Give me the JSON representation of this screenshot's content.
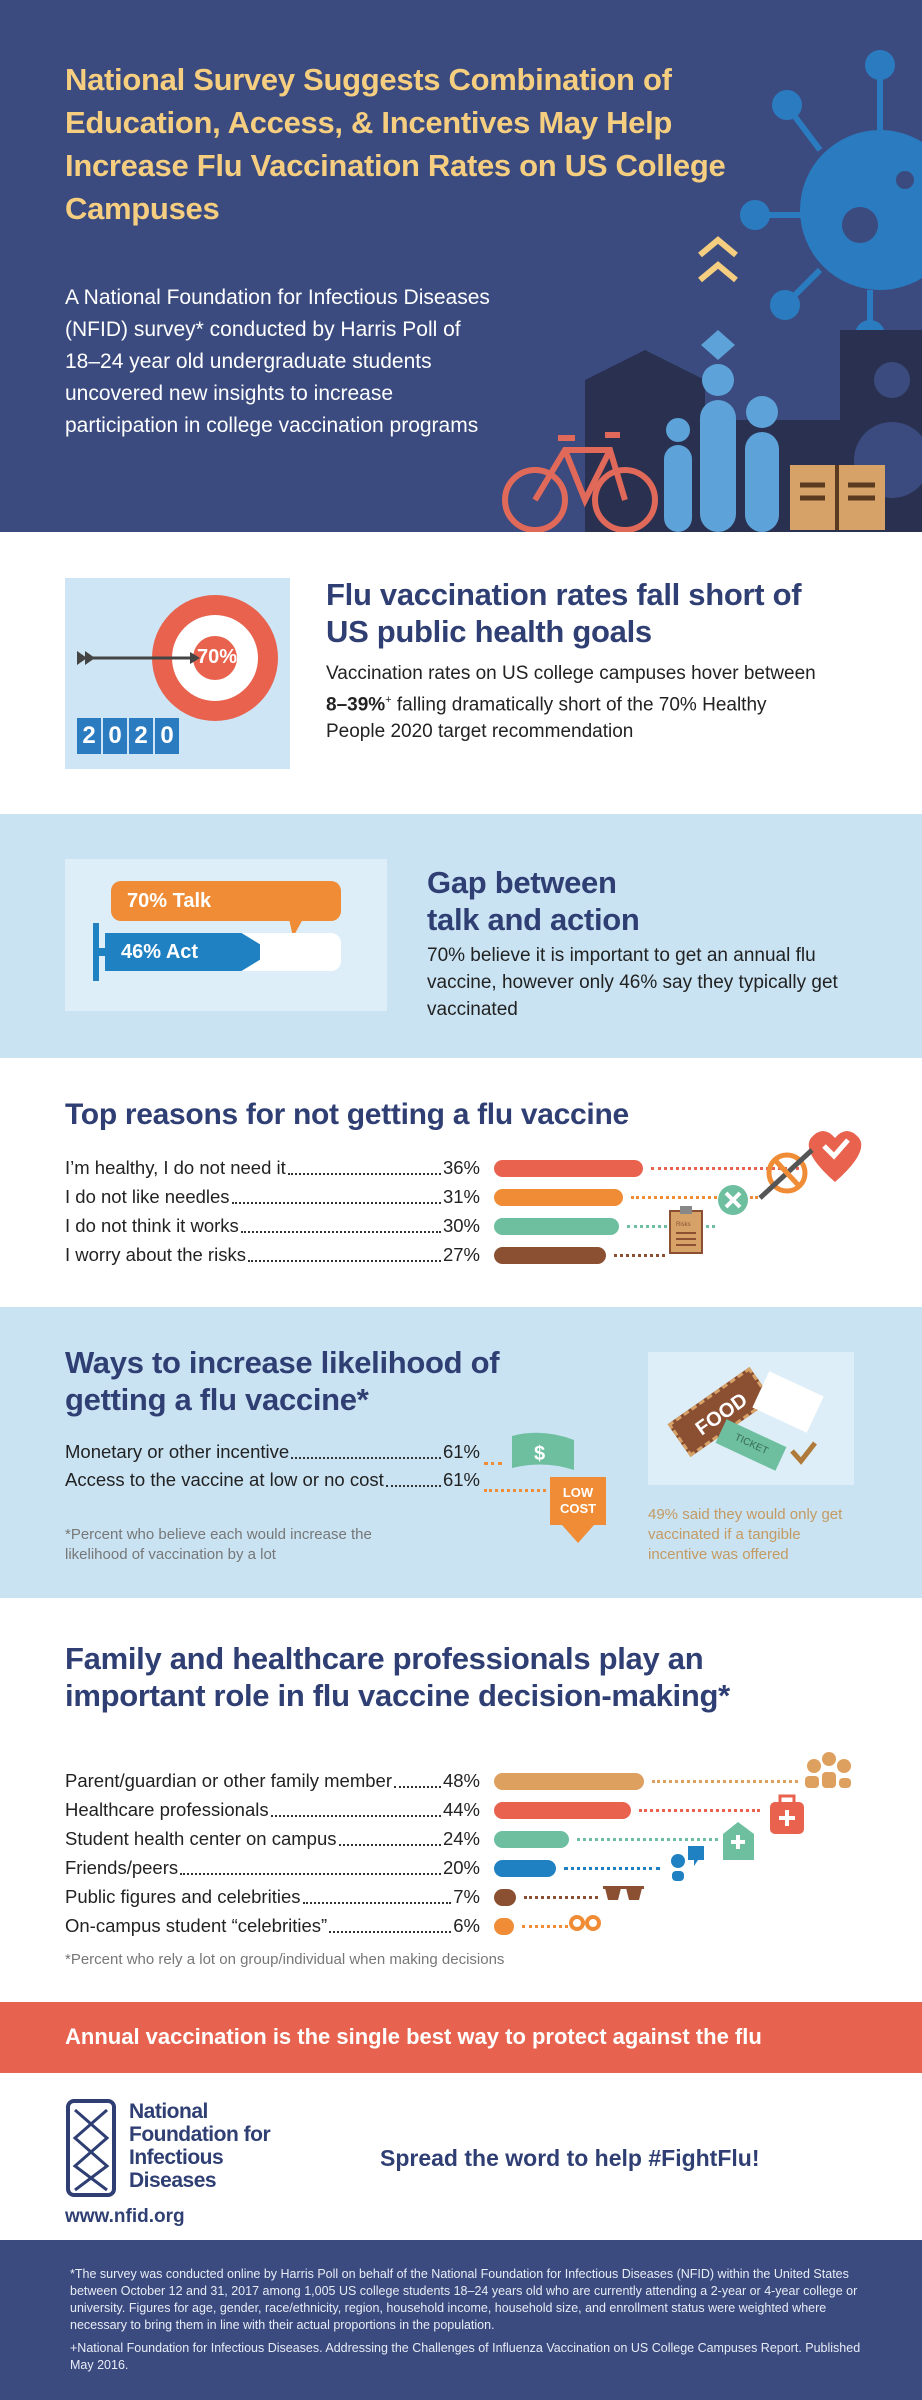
{
  "header": {
    "title": "National Survey Suggests Combination of Education, Access, & Incentives May Help Increase Flu Vaccination Rates on US College Campuses",
    "intro": "A National Foundation for Infectious Diseases (NFID) survey* conducted by Harris Poll of 18–24 year old undergraduate students uncovered new insights to increase participation in college vaccination programs"
  },
  "goals": {
    "heading": "Flu vaccination rates fall short of US public health goals",
    "body_pre": "Vaccination rates on US college campuses hover between ",
    "body_bold": "8–39%",
    "body_sup": "+",
    "body_post": " falling dramatically short of the 70% Healthy People 2020 target recommendation",
    "target_label": "70%",
    "year_digits": [
      "2",
      "0",
      "2",
      "0"
    ]
  },
  "gap": {
    "heading": "Gap between talk and action",
    "body": "70% believe it is important to get an annual flu vaccine, however only 46% say they typically get vaccinated",
    "talk_label": "70% Talk",
    "act_label": "46% Act",
    "talk_value": 70,
    "act_value": 46
  },
  "reasons": {
    "heading": "Top reasons for not getting a flu vaccine",
    "items": [
      {
        "label": "I’m healthy, I do not need it",
        "pct": "36%",
        "value": 36,
        "color": "#e8624e",
        "icon": "heart-check-icon"
      },
      {
        "label": "I do not like needles",
        "pct": "31%",
        "value": 31,
        "color": "#ef8c35",
        "icon": "no-needle-icon"
      },
      {
        "label": "I do not think it works",
        "pct": "30%",
        "value": 30,
        "color": "#6dbf9f",
        "icon": "x-circle-icon"
      },
      {
        "label": "I worry about the risks",
        "pct": "27%",
        "value": 27,
        "color": "#8b4f32",
        "icon": "clipboard-icon"
      }
    ],
    "clipboard_text": "Risks"
  },
  "ways": {
    "heading": "Ways to increase likelihood of getting a flu vaccine*",
    "items": [
      {
        "label": "Monetary or other incentive",
        "pct": "61%",
        "value": 61
      },
      {
        "label": "Access to the vaccine at low or no cost",
        "pct": "61%",
        "value": 61
      }
    ],
    "low_cost": "LOW COST",
    "footnote": "*Percent who believe each would increase the likelihood of vaccination by a lot",
    "food": "FOOD",
    "ticket": "TICKET",
    "caption": "49% said they would only get vaccinated if a tangible incentive was offered"
  },
  "influence": {
    "heading": "Family and healthcare professionals play an important role in flu vaccine decision-making*",
    "items": [
      {
        "label": "Parent/guardian or other family member",
        "pct": "48%",
        "value": 48,
        "color": "#dea05e"
      },
      {
        "label": "Healthcare professionals",
        "pct": "44%",
        "value": 44,
        "color": "#e8624e"
      },
      {
        "label": "Student health center on campus",
        "pct": "24%",
        "value": 24,
        "color": "#6dbf9f"
      },
      {
        "label": "Friends/peers",
        "pct": "20%",
        "value": 20,
        "color": "#1f80c2"
      },
      {
        "label": "Public figures and celebrities",
        "pct": "7%",
        "value": 7,
        "color": "#8b4f32"
      },
      {
        "label": "On-campus student “celebrities”",
        "pct": "6%",
        "value": 6,
        "color": "#ef8c35"
      }
    ],
    "footnote": "*Percent who rely a lot on group/individual when making decisions"
  },
  "banner": {
    "text": "Annual vaccination is the single best way to protect against the flu"
  },
  "org": {
    "logo_lines": [
      "National",
      "Foundation for",
      "Infectious",
      "Diseases"
    ],
    "url": "www.nfid.org",
    "cta": "Spread the word to help #FightFlu!"
  },
  "footer": {
    "note1": "*The survey was conducted online by Harris Poll on behalf of the National Foundation for Infectious Diseases (NFID) within the United States between October 12 and 31, 2017 among 1,005 US college students 18–24 years old who are currently attending a 2-year or 4-year college or university. Figures for age, gender, race/ethnicity, region, household income, household size, and enrollment status were weighted where necessary to bring them in line with their actual proportions in the population.",
    "note2": "+National Foundation for Infectious Diseases. Addressing the Challenges of Influenza Vaccination on US College Campuses Report. Published May 2016."
  }
}
